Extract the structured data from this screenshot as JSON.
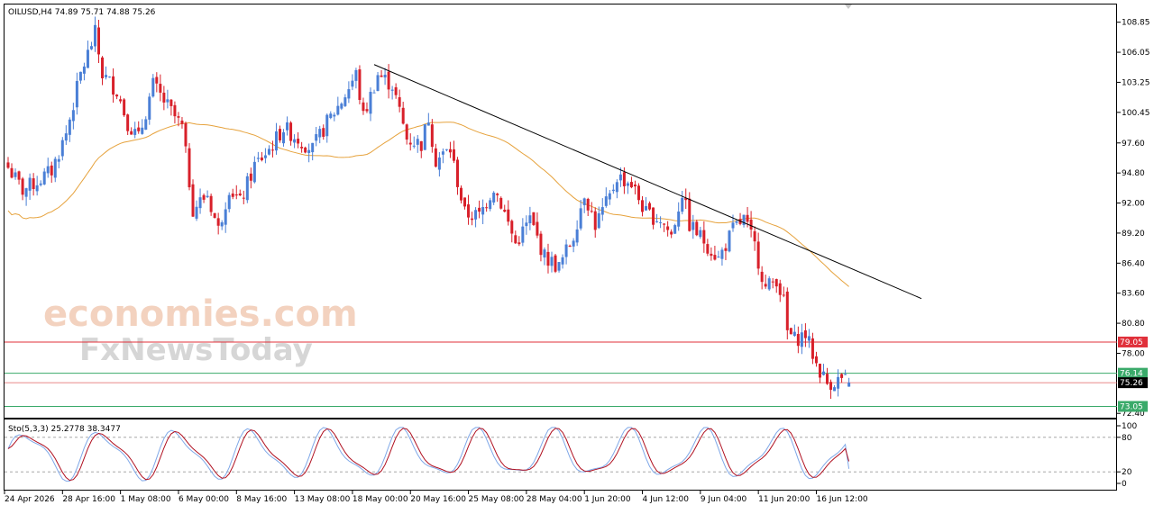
{
  "header": {
    "title": "OILUSD,H4  74.89 75.71 74.88 75.26"
  },
  "watermark": {
    "line1": "economies.com",
    "line2": "FxNewsToday"
  },
  "indicator": {
    "label": "Sto(5,3,3) 25.2778 38.3477"
  },
  "colors": {
    "bull": "#4a7fd6",
    "bear": "#d8202a",
    "ma": "#e6a23c",
    "trend": "#000000",
    "resistance": "#e0303a",
    "support": "#3aaa6a",
    "price": "#e06060",
    "stoch_main": "#7fa8e8",
    "stoch_signal": "#b01020",
    "watermark1": "#f3d2bf",
    "watermark2": "#d6d6d6"
  },
  "chart_data": [
    {
      "type": "candlestick",
      "symbol": "OILUSD",
      "timeframe": "H4",
      "ylim": [
        72.0,
        110.5
      ],
      "y_ticks": [
        "108.85",
        "106.05",
        "103.25",
        "100.45",
        "97.60",
        "94.80",
        "92.00",
        "89.20",
        "86.40",
        "83.60",
        "80.80",
        "78.00",
        "72.40"
      ],
      "y_tick_values": [
        108.85,
        106.05,
        103.25,
        100.45,
        97.6,
        94.8,
        92.0,
        89.2,
        86.4,
        83.6,
        80.8,
        78.0,
        72.4
      ],
      "x_ticks": [
        "24 Apr 2026",
        "28 Apr 16:00",
        "1 May 08:00",
        "6 May 00:00",
        "8 May 16:00",
        "13 May 08:00",
        "18 May 00:00",
        "20 May 16:00",
        "25 May 08:00",
        "28 May 04:00",
        "1 Jun 20:00",
        "4 Jun 12:00",
        "9 Jun 04:00",
        "11 Jun 20:00",
        "16 Jun 12:00"
      ],
      "x_tick_index": [
        0,
        16,
        32,
        48,
        64,
        80,
        96,
        112,
        128,
        144,
        160,
        176,
        192,
        208,
        224
      ],
      "total_bars": 233,
      "anchors": [
        [
          0,
          95.3
        ],
        [
          4,
          93.2
        ],
        [
          8,
          94.0
        ],
        [
          12,
          95.0
        ],
        [
          16,
          98.5
        ],
        [
          20,
          104.0
        ],
        [
          24,
          107.8
        ],
        [
          26,
          104.0
        ],
        [
          30,
          102.5
        ],
        [
          33,
          99.5
        ],
        [
          36,
          98.0
        ],
        [
          40,
          103.0
        ],
        [
          44,
          101.0
        ],
        [
          48,
          99.0
        ],
        [
          51,
          91.5
        ],
        [
          55,
          92.8
        ],
        [
          58,
          89.5
        ],
        [
          61,
          93.5
        ],
        [
          64,
          92.0
        ],
        [
          68,
          95.5
        ],
        [
          72,
          97.0
        ],
        [
          76,
          99.0
        ],
        [
          80,
          98.0
        ],
        [
          84,
          97.0
        ],
        [
          88,
          99.5
        ],
        [
          92,
          101.5
        ],
        [
          96,
          104.0
        ],
        [
          98,
          100.0
        ],
        [
          102,
          104.0
        ],
        [
          106,
          103.0
        ],
        [
          110,
          98.0
        ],
        [
          114,
          97.5
        ],
        [
          116,
          100.0
        ],
        [
          118,
          96.0
        ],
        [
          122,
          97.0
        ],
        [
          126,
          91.0
        ],
        [
          130,
          90.8
        ],
        [
          134,
          93.5
        ],
        [
          136,
          92.0
        ],
        [
          140,
          88.2
        ],
        [
          144,
          90.5
        ],
        [
          148,
          87.0
        ],
        [
          152,
          86.0
        ],
        [
          156,
          89.0
        ],
        [
          159,
          93.0
        ],
        [
          162,
          90.0
        ],
        [
          166,
          92.5
        ],
        [
          168,
          94.5
        ],
        [
          172,
          93.8
        ],
        [
          176,
          91.0
        ],
        [
          180,
          90.5
        ],
        [
          183,
          89.0
        ],
        [
          186,
          93.0
        ],
        [
          188,
          90.0
        ],
        [
          192,
          88.5
        ],
        [
          196,
          86.8
        ],
        [
          200,
          89.5
        ],
        [
          203,
          90.5
        ],
        [
          206,
          88.0
        ],
        [
          209,
          84.0
        ],
        [
          212,
          85.0
        ],
        [
          214,
          82.8
        ],
        [
          215,
          80.0
        ],
        [
          217,
          79.3
        ],
        [
          220,
          79.8
        ],
        [
          223,
          77.0
        ],
        [
          226,
          75.2
        ],
        [
          230,
          75.6
        ],
        [
          232,
          75.26
        ]
      ],
      "ma_period": 50,
      "trendline": {
        "start": [
          101,
          104.9
        ],
        "end": [
          252,
          83.1
        ]
      },
      "levels": [
        {
          "value": 79.05,
          "label": "79.05",
          "kind": "resistance"
        },
        {
          "value": 76.14,
          "label": "76.14",
          "kind": "support"
        },
        {
          "value": 75.26,
          "label": "75.26",
          "kind": "price"
        },
        {
          "value": 73.05,
          "label": "73.05",
          "kind": "support"
        }
      ]
    },
    {
      "type": "line",
      "name": "Stochastic",
      "ylim": [
        0,
        100
      ],
      "y_ticks": [
        "100",
        "80",
        "20",
        "0"
      ],
      "y_tick_values": [
        100,
        80,
        20,
        0
      ],
      "main_last": 25.2778,
      "signal_last": 38.3477
    }
  ]
}
